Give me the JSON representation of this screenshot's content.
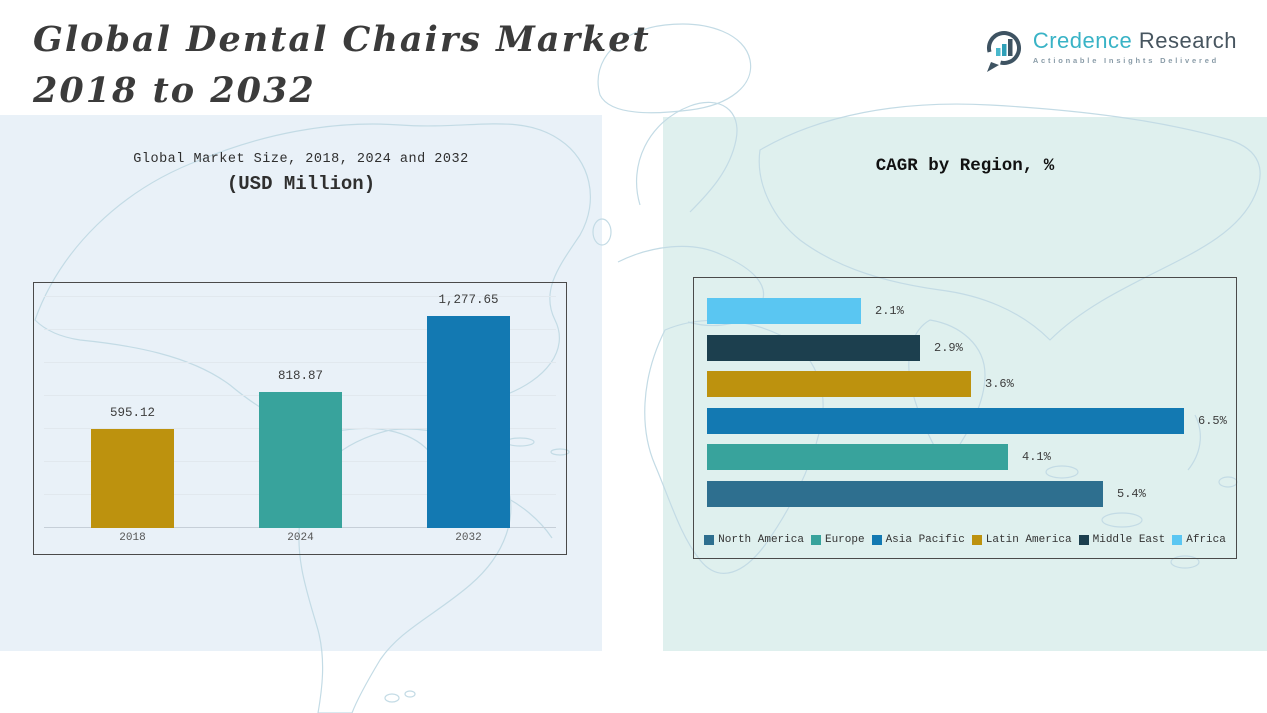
{
  "header": {
    "title_line1": "Global Dental Chairs Market",
    "title_line2": "2018 to 2032",
    "logo": {
      "icon": "bar-chart-circle-icon",
      "brand_word1": "Credence",
      "brand_word2": "Research",
      "tagline": "Actionable Insights Delivered",
      "brand_color": "#39B3C6",
      "text_color": "#47555F"
    }
  },
  "chart_data": [
    {
      "type": "bar",
      "title": "Global Market Size, 2018, 2024 and 2032",
      "subtitle": "(USD Million)",
      "categories": [
        "2018",
        "2024",
        "2032"
      ],
      "values": [
        595.12,
        818.87,
        1277.65
      ],
      "value_labels": [
        "595.12",
        "818.87",
        "1,277.65"
      ],
      "bar_colors": [
        "#BD920E",
        "#38A39C",
        "#1379B2"
      ],
      "xlabel": "",
      "ylabel": "",
      "ylim": [
        0,
        1400
      ],
      "grid": true,
      "legend_position": "none"
    },
    {
      "type": "bar",
      "orientation": "horizontal",
      "title": "CAGR by Region, %",
      "rows_top_to_bottom": [
        {
          "region": "Africa",
          "value": 2.1,
          "label": "2.1%",
          "color": "#5AC6F2"
        },
        {
          "region": "Middle East",
          "value": 2.9,
          "label": "2.9%",
          "color": "#1C3F4E"
        },
        {
          "region": "Latin America",
          "value": 3.6,
          "label": "3.6%",
          "color": "#BD920E"
        },
        {
          "region": "Asia Pacific",
          "value": 6.5,
          "label": "6.5%",
          "color": "#1379B2"
        },
        {
          "region": "Europe",
          "value": 4.1,
          "label": "4.1%",
          "color": "#38A39C"
        },
        {
          "region": "North America",
          "value": 5.4,
          "label": "5.4%",
          "color": "#2E6F8F"
        }
      ],
      "xlim": [
        0,
        7
      ],
      "grid": false,
      "legend_position": "bottom",
      "legend": [
        {
          "label": "North America",
          "color": "#2E6F8F"
        },
        {
          "label": "Europe",
          "color": "#38A39C"
        },
        {
          "label": "Asia Pacific",
          "color": "#1379B2"
        },
        {
          "label": "Latin America",
          "color": "#BD920E"
        },
        {
          "label": "Middle East",
          "color": "#1C3F4E"
        },
        {
          "label": "Africa",
          "color": "#5AC6F2"
        }
      ]
    }
  ],
  "style": {
    "panel_left_bg": "#E9F1F8",
    "panel_right_bg": "#DFF0EE",
    "map_stroke": "#c3dbe5",
    "title_color": "#3b3b3b"
  }
}
